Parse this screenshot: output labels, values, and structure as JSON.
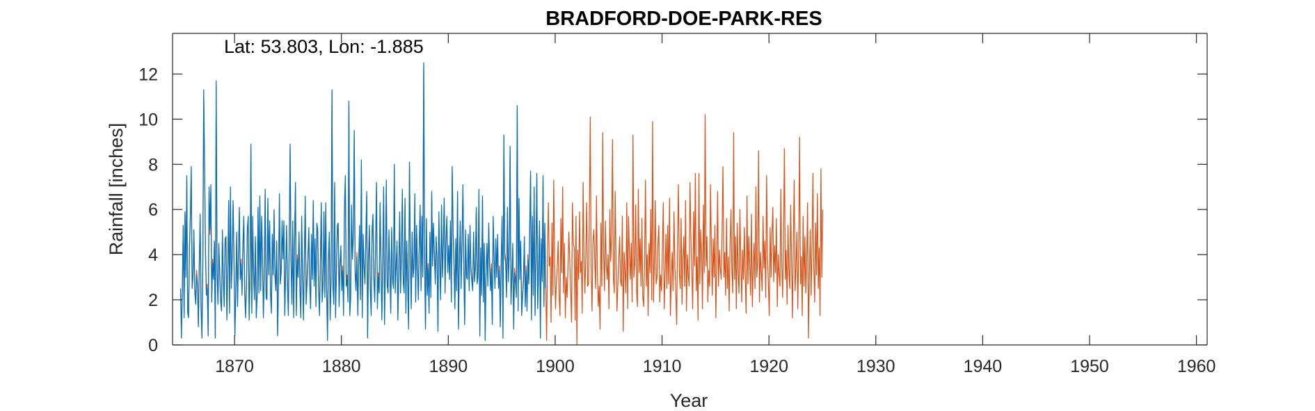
{
  "chart_data": {
    "type": "line",
    "title": "BRADFORD-DOE-PARK-RES",
    "annotation": "Lat: 53.803, Lon: -1.885",
    "xlabel": "Year",
    "ylabel": "Rainfall [inches]",
    "xlim": [
      1864.2,
      1961
    ],
    "ylim": [
      0,
      13.8
    ],
    "xticks": [
      1870,
      1880,
      1890,
      1900,
      1910,
      1920,
      1930,
      1940,
      1950,
      1960
    ],
    "yticks": [
      0,
      2,
      4,
      6,
      8,
      10,
      12
    ],
    "grid": false,
    "legend": "none",
    "colors": {
      "series1": "#0072BD",
      "series2": "#D95319",
      "axes": "#262626"
    },
    "series": [
      {
        "color": "#D95319",
        "x_start": 1864.95,
        "x_step": 0.08333,
        "values": [
          2.3,
          0.5,
          2.4,
          5.2,
          1.4,
          5.8,
          3.1,
          7.3,
          1.6,
          1.4,
          4.2,
          5.6,
          7.7,
          2.7,
          3.1,
          4.9,
          2.5,
          1.9,
          3.3,
          2.7,
          0.9,
          3.6,
          5.6,
          1.8,
          0.4,
          3.7,
          11.1,
          7.7,
          4.2,
          2.3,
          2.7,
          0.5,
          6.8,
          4.9,
          6.9,
          2.1,
          3.8,
          3.1,
          4.5,
          0.4,
          11.5,
          3.3,
          2.0,
          4.3,
          3.3,
          2.1,
          1.6,
          4.9,
          3.0,
          1.9,
          4.5,
          4.6,
          1.3,
          3.4,
          6.2,
          1.6,
          6.8,
          2.7,
          4.0,
          6.2,
          3.9,
          0.5,
          2.5,
          4.8,
          1.9,
          4.1,
          5.9,
          3.1,
          3.8,
          2.4,
          4.3,
          5.5,
          2.5,
          1.4,
          2.7,
          5.0,
          5.5,
          1.3,
          3.0,
          8.7,
          1.6,
          5.5,
          3.2,
          2.2,
          4.6,
          1.4,
          2.3,
          5.9,
          2.5,
          6.4,
          2.6,
          5.5,
          4.0,
          1.4,
          3.3,
          6.7,
          2.3,
          2.2,
          6.3,
          3.3,
          5.3,
          2.4,
          1.6,
          4.7,
          3.3,
          5.8,
          3.2,
          2.6,
          4.4,
          0.5,
          3.1,
          6.5,
          2.9,
          3.4,
          5.3,
          4.0,
          5.3,
          1.5,
          3.3,
          5.1,
          2.9,
          1.5,
          4.3,
          8.7,
          3.9,
          2.0,
          5.3,
          1.4,
          4.4,
          7.0,
          1.5,
          4.0,
          3.2,
          4.8,
          2.6,
          1.4,
          5.5,
          3.1,
          1.3,
          4.0,
          6.4,
          2.0,
          2.9,
          3.9,
          5.0,
          2.9,
          1.8,
          4.7,
          3.1,
          6.2,
          2.8,
          4.5,
          1.9,
          5.2,
          4.9,
          2.5,
          1.5,
          3.8,
          6.1,
          2.1,
          2.8,
          5.7,
          2.3,
          6.1,
          2.5,
          0.4,
          3.9,
          4.8,
          1.3,
          3.0,
          11.2,
          2.9,
          2.0,
          7.0,
          1.4,
          3.4,
          5.1,
          5.2,
          1.9,
          3.7,
          4.2,
          2.6,
          3.5,
          1.5,
          5.9,
          7.3,
          2.8,
          3.1,
          2.1,
          10.6,
          1.5,
          2.3,
          6.0,
          4.0,
          4.7,
          9.3,
          3.3,
          2.6,
          4.1,
          1.5,
          3.8,
          5.1,
          2.2,
          8.0,
          1.4,
          4.7,
          3.6,
          2.9,
          4.5,
          6.6,
          0.4,
          3.9,
          5.1,
          2.6,
          1.5,
          4.9,
          5.6,
          3.1,
          2.1,
          4.4,
          7.0,
          1.8,
          3.2,
          2.5,
          6.1,
          3.9,
          1.3,
          3.8,
          6.8,
          1.1,
          3.6,
          7.1,
          2.8,
          2.5,
          4.9,
          3.4,
          1.6,
          5.0,
          3.1,
          2.7,
          7.8,
          2.5,
          3.6,
          4.4,
          1.3,
          3.3,
          5.7,
          2.5,
          4.0,
          6.7,
          3.0,
          2.5,
          6.3,
          1.6,
          4.4,
          2.9,
          0.9,
          7.9,
          4.1,
          1.8,
          4.8,
          3.2,
          3.6,
          6.5,
          2.1,
          5.1,
          3.5,
          2.2,
          4.3,
          6.0,
          2.6,
          5.5,
          3.2,
          12.4,
          4.0,
          0.9,
          5.4,
          2.4,
          3.6,
          1.6,
          4.8,
          2.3,
          6.6,
          3.7,
          5.2,
          4.1,
          2.9,
          4.6,
          3.9,
          0.8,
          5.7,
          3.7,
          2.2,
          6.0,
          3.2,
          4.3,
          6.3,
          2.5,
          4.6,
          5.5,
          3.4,
          4.2,
          3.1,
          5.3,
          2.1,
          7.7,
          4.9,
          3.7,
          1.8,
          4.5,
          2.6,
          6.6,
          0.9,
          3.7,
          5.3,
          2.7,
          4.4,
          6.9,
          3.7,
          1.1,
          4.9,
          3.2,
          3.1,
          4.7,
          2.6,
          5.1,
          3.5,
          3.0,
          2.6,
          4.8,
          3.0,
          3.5,
          5.9,
          2.9,
          3.2,
          6.7,
          0.6,
          4.1,
          2.4,
          6.4,
          2.1,
          4.3,
          0.3,
          3.4,
          4.3,
          2.8,
          5.2,
          3.7,
          2.6,
          3.6,
          1.1,
          5.5,
          4.0,
          2.7,
          4.5,
          3.2,
          4.7,
          2.7,
          3.5,
          1.0,
          3.8,
          5.5,
          0.5,
          9.2,
          4.1,
          3.8,
          2.3,
          5.9,
          3.0,
          4.1,
          8.6,
          2.0,
          3.1,
          4.3,
          0.9,
          3.4,
          3.0,
          2.3,
          10.5,
          1.7,
          6.3,
          3.1,
          4.4,
          1.5,
          2.3,
          3.0,
          4.6,
          1.9,
          3.5,
          1.7,
          4.0,
          2.9,
          5.0,
          7.5,
          1.3,
          5.5,
          2.4,
          6.8,
          1.5,
          4.0,
          7.4,
          1.8,
          3.4,
          5.3,
          0.4,
          4.5,
          3.0,
          7.3,
          1.9,
          5.2,
          2.7,
          0.2,
          4.1,
          6.3,
          3.5,
          3.9,
          1.0,
          5.4,
          2.2,
          7.3,
          3.8,
          1.6,
          2.8,
          3.5,
          4.6,
          2.2,
          1.3,
          5.6,
          3.2,
          7.0,
          2.3,
          4.5,
          1.2,
          3.0,
          2.1,
          3.5,
          5.0,
          3.7,
          2.4,
          1.0,
          6.3,
          4.5,
          4.3,
          1.1,
          5.7,
          0.0,
          4.2,
          2.9,
          5.9,
          3.2,
          3.7,
          1.4,
          7.2,
          3.9,
          2.3,
          4.0,
          6.3,
          2.6,
          2.7,
          5.8,
          10.1,
          3.4,
          1.5,
          4.6,
          5.1,
          3.8,
          2.5,
          6.6,
          3.2,
          1.7,
          2.6,
          0.7,
          5.4,
          2.6,
          9.4,
          4.1,
          2.4,
          5.5,
          3.6,
          2.9,
          4.0,
          1.6,
          6.0,
          3.7,
          4.9,
          9.1,
          2.9,
          2.3,
          6.8,
          3.6,
          1.5,
          2.7,
          3.8,
          4.8,
          2.8,
          2.6,
          5.7,
          0.6,
          4.1,
          3.3,
          2.3,
          6.3,
          1.6,
          5.7,
          4.0,
          2.9,
          4.5,
          1.9,
          9.3,
          3.0,
          3.6,
          6.2,
          2.4,
          1.7,
          6.9,
          3.2,
          4.7,
          2.6,
          5.6,
          2.1,
          1.7,
          3.8,
          7.3,
          2.6,
          4.0,
          1.3,
          4.5,
          3.2,
          6.0,
          2.0,
          9.9,
          1.9,
          3.8,
          6.4,
          2.7,
          3.0,
          4.5,
          5.3,
          1.9,
          3.1,
          2.4,
          4.3,
          6.3,
          1.6,
          3.1,
          4.9,
          2.5,
          5.3,
          2.7,
          6.5,
          1.3,
          3.0,
          4.1,
          2.4,
          5.9,
          3.5,
          2.4,
          0.9,
          4.6,
          7.1,
          3.2,
          2.5,
          5.6,
          1.8,
          3.8,
          4.8,
          2.6,
          6.4,
          1.5,
          4.0,
          3.1,
          2.6,
          7.2,
          4.7,
          3.3,
          1.6,
          5.9,
          3.5,
          7.6,
          2.4,
          3.9,
          1.1,
          7.6,
          2.7,
          5.1,
          4.1,
          1.6,
          6.2,
          3.2,
          10.2,
          3.5,
          4.8,
          1.9,
          3.3,
          2.6,
          7.1,
          4.3,
          2.2,
          4.7,
          3.0,
          5.3,
          1.2,
          3.7,
          6.8,
          2.6,
          4.2,
          3.4,
          2.9,
          5.0,
          7.9,
          3.0,
          4.1,
          2.2,
          5.6,
          2.5,
          3.9,
          1.5,
          4.5,
          6.0,
          3.3,
          2.3,
          9.4,
          2.9,
          4.8,
          1.6,
          5.4,
          3.2,
          2.3,
          6.0,
          3.8,
          1.9,
          4.2,
          2.9,
          5.2,
          3.0,
          1.4,
          6.6,
          2.7,
          4.8,
          3.6,
          2.2,
          5.8,
          1.7,
          3.5,
          4.5,
          2.5,
          7.0,
          3.0,
          3.7,
          8.6,
          1.9,
          4.1,
          3.3,
          2.4,
          5.7,
          3.4,
          4.6,
          2.1,
          7.5,
          4.0,
          2.7,
          1.3,
          5.2,
          3.0,
          4.9,
          6.1,
          2.8,
          4.4,
          3.2,
          5.6,
          1.7,
          4.0,
          3.1,
          2.6,
          6.9,
          3.6,
          2.1,
          4.7,
          8.7,
          2.9,
          4.2,
          1.8,
          5.3,
          3.3,
          2.5,
          6.2,
          3.8,
          1.2,
          4.6,
          7.3,
          2.4,
          3.5,
          5.0,
          1.6,
          4.1,
          9.2,
          2.7,
          3.9,
          1.3,
          5.7,
          2.6,
          4.8,
          2.3,
          3.7,
          6.3,
          0.3,
          3.0,
          5.1,
          2.2,
          4.4,
          7.6,
          3.4,
          1.9,
          5.4,
          3.1,
          6.7,
          2.5,
          4.3,
          1.3,
          7.8,
          3.0,
          6.0
        ]
      },
      {
        "color": "#0072BD",
        "x_start": 1864.95,
        "x_step": 0.08333,
        "values": [
          2.5,
          0.3,
          2.6,
          5.3,
          1.2,
          5.9,
          3.0,
          7.5,
          1.4,
          1.2,
          4.4,
          5.8,
          7.9,
          2.5,
          3.0,
          5.1,
          2.3,
          1.8,
          3.1,
          2.6,
          0.8,
          3.4,
          5.8,
          1.6,
          0.3,
          3.5,
          11.3,
          7.9,
          4.0,
          2.2,
          2.5,
          0.4,
          7.0,
          5.1,
          7.1,
          1.9,
          3.6,
          2.9,
          4.6,
          0.3,
          11.7,
          3.1,
          1.8,
          4.5,
          3.1,
          1.9,
          1.5,
          5.1,
          2.8,
          1.7,
          4.7,
          4.8,
          1.1,
          3.2,
          6.4,
          1.4,
          7.0,
          2.5,
          3.8,
          6.4,
          3.7,
          0.4,
          2.3,
          5.0,
          1.7,
          3.9,
          6.1,
          2.9,
          3.6,
          2.2,
          4.5,
          5.7,
          2.3,
          1.2,
          2.5,
          5.2,
          5.7,
          1.1,
          2.8,
          8.9,
          1.4,
          5.7,
          3.0,
          2.0,
          4.8,
          1.2,
          2.1,
          6.1,
          2.3,
          6.6,
          2.4,
          5.7,
          3.8,
          1.2,
          3.1,
          6.9,
          2.1,
          2.0,
          6.5,
          3.1,
          5.5,
          2.2,
          1.4,
          4.9,
          3.1,
          6.0,
          3.0,
          2.4,
          4.6,
          0.4,
          2.9,
          6.7,
          2.7,
          3.2,
          5.5,
          3.8,
          5.5,
          1.3,
          3.1,
          5.3,
          2.7,
          1.3,
          4.5,
          8.9,
          3.7,
          1.8,
          5.5,
          1.2,
          4.6,
          7.2,
          1.3,
          3.8,
          3.0,
          5.0,
          2.4,
          1.2,
          5.7,
          2.9,
          1.1,
          3.8,
          6.6,
          1.8,
          2.7,
          3.7,
          5.2,
          2.7,
          1.6,
          4.9,
          2.9,
          6.4,
          2.6,
          4.7,
          1.7,
          5.4,
          5.1,
          2.3,
          1.3,
          3.6,
          6.3,
          1.9,
          2.6,
          5.9,
          2.1,
          6.3,
          2.3,
          0.2,
          3.7,
          5.0,
          1.1,
          2.8,
          11.3,
          2.7,
          1.8,
          7.2,
          1.2,
          3.2,
          5.3,
          5.4,
          1.7,
          3.5,
          4.4,
          2.4,
          3.3,
          1.3,
          6.1,
          7.5,
          2.6,
          2.9,
          1.9,
          10.8,
          1.3,
          2.1,
          6.2,
          3.8,
          4.9,
          9.5,
          3.1,
          2.4,
          3.9,
          1.3,
          3.6,
          5.3,
          2.0,
          8.2,
          1.2,
          4.9,
          3.4,
          2.7,
          4.7,
          6.8,
          0.3,
          3.7,
          5.3,
          2.4,
          1.3,
          5.1,
          5.8,
          2.9,
          1.9,
          4.6,
          7.2,
          1.6,
          3.0,
          2.3,
          6.3,
          3.7,
          1.1,
          3.6,
          7.0,
          0.9,
          3.4,
          7.3,
          2.6,
          2.3,
          5.1,
          3.2,
          1.4,
          5.2,
          2.9,
          2.5,
          8.0,
          2.3,
          3.4,
          4.6,
          1.1,
          3.1,
          5.9,
          2.3,
          3.8,
          6.9,
          2.8,
          2.3,
          6.5,
          1.4,
          4.6,
          2.7,
          0.7,
          8.1,
          3.9,
          1.6,
          5.0,
          3.0,
          3.4,
          6.7,
          1.9,
          5.3,
          3.3,
          2.0,
          4.5,
          6.2,
          2.4,
          5.7,
          3.0,
          12.5,
          3.8,
          0.7,
          5.6,
          2.2,
          3.4,
          1.4,
          5.0,
          2.1,
          6.8,
          3.5,
          5.4,
          3.9,
          2.7,
          4.8,
          3.7,
          0.6,
          5.9,
          3.5,
          2.0,
          6.2,
          3.0,
          4.5,
          6.5,
          2.3,
          4.8,
          5.7,
          3.2,
          4.4,
          2.9,
          5.5,
          1.9,
          7.9,
          5.1,
          3.5,
          1.6,
          4.7,
          2.4,
          6.8,
          0.7,
          3.5,
          5.5,
          2.5,
          4.6,
          7.1,
          3.5,
          0.9,
          5.1,
          3.0,
          2.9,
          4.9,
          2.4,
          5.3,
          3.3,
          2.8,
          2.4,
          5.0,
          2.8,
          3.3,
          6.1,
          2.7,
          3.0,
          6.9,
          0.4,
          4.3,
          2.2,
          6.6,
          1.9,
          4.5,
          0.2,
          3.2,
          4.5,
          2.6,
          5.4,
          3.5,
          2.4,
          3.4,
          0.9,
          5.7,
          3.8,
          2.5,
          4.7,
          3.0,
          4.9,
          2.5,
          3.3,
          0.8,
          3.6,
          5.7,
          0.3,
          9.3,
          3.9,
          3.6,
          2.1,
          6.1,
          2.8,
          3.9,
          8.8,
          1.8,
          2.9,
          4.5,
          0.7,
          3.2,
          2.8,
          2.1,
          10.6,
          1.5,
          6.5,
          2.9,
          4.6,
          1.3,
          2.1,
          2.8,
          4.8,
          1.7,
          3.3,
          1.5,
          3.8,
          2.7,
          5.2,
          7.7,
          1.1,
          5.7,
          2.2,
          7.0,
          1.3,
          3.8,
          7.6,
          1.6,
          3.2,
          5.5,
          0.3,
          4.7,
          2.8,
          7.5,
          1.7,
          5.4,
          2.5
        ]
      }
    ]
  }
}
